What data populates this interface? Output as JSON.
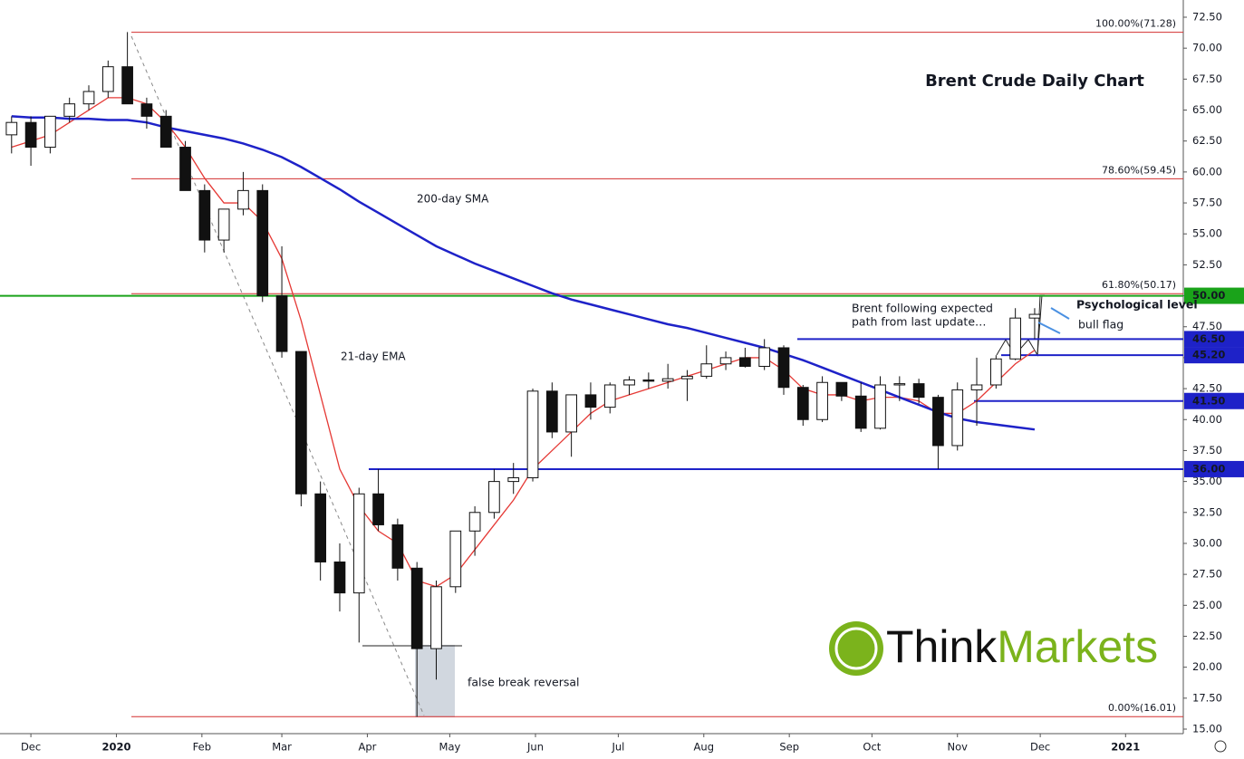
{
  "chart_data": {
    "type": "candlestick",
    "title": "Brent Crude Daily Chart",
    "categories": [
      null,
      null,
      null,
      null,
      null,
      null,
      null,
      null,
      null,
      null,
      null,
      null,
      null,
      null,
      null,
      null,
      null,
      null,
      null,
      null,
      null,
      null,
      null,
      null,
      null,
      null,
      null,
      null,
      null,
      null,
      null,
      null,
      null,
      null,
      null,
      null,
      null,
      null,
      null,
      null,
      null,
      null,
      null,
      null,
      null,
      null,
      null,
      null,
      null,
      null,
      null,
      null,
      null,
      null
    ],
    "open": [
      63,
      64,
      62,
      64.5,
      65.5,
      66.5,
      68.5,
      65.5,
      64.5,
      62,
      58.5,
      54.5,
      57,
      58.5,
      50,
      45.5,
      34,
      28.5,
      26,
      34,
      31.5,
      28,
      21.5,
      26.5,
      31,
      32.5,
      35,
      35.3,
      42.3,
      39,
      42,
      41,
      42.8,
      43.2,
      43.1,
      43.3,
      43.5,
      44.5,
      45,
      44.3,
      45.8,
      42.6,
      40,
      43,
      41.9,
      39.3,
      42.8,
      42.9,
      41.8,
      37.9,
      42.4,
      42.8,
      44.9,
      48.2
    ],
    "high": [
      64.5,
      64.5,
      64.5,
      66,
      67,
      69,
      71.3,
      66,
      65,
      62.5,
      59,
      57,
      60,
      59,
      54,
      45.5,
      35,
      30,
      34.5,
      36,
      32,
      28.5,
      27,
      31,
      33,
      36,
      36.5,
      42.5,
      43,
      42,
      43,
      43,
      43.5,
      43.8,
      44.5,
      44,
      46,
      45.5,
      45.8,
      46.5,
      46,
      42.8,
      43.5,
      43,
      43,
      43.5,
      43.5,
      43.3,
      42,
      43,
      45,
      45.2,
      49,
      49
    ],
    "low": [
      61.5,
      60.5,
      61.5,
      64,
      65,
      66,
      65.5,
      63.5,
      62,
      58.5,
      53.5,
      53.5,
      56.5,
      49.5,
      45,
      33,
      27,
      24.5,
      22,
      31,
      27,
      16,
      19,
      26,
      29,
      32,
      34,
      35,
      38.5,
      37,
      40,
      40.5,
      42,
      42.5,
      42.5,
      41.5,
      43.3,
      44,
      44.2,
      44,
      42,
      39.5,
      39.8,
      41.5,
      39,
      39.2,
      41.5,
      41.3,
      36,
      37.5,
      39.5,
      42.5,
      44.8,
      46.5
    ],
    "close": [
      64,
      62,
      64.5,
      65.5,
      66.5,
      68.5,
      65.5,
      64.5,
      62,
      58.5,
      54.5,
      57,
      58.5,
      50,
      45.5,
      34,
      28.5,
      26,
      34,
      31.5,
      28,
      21.5,
      26.5,
      31,
      32.5,
      35,
      35.3,
      42.3,
      39,
      42,
      41,
      42.8,
      43.2,
      43.1,
      43.3,
      43.5,
      44.5,
      45,
      44.3,
      45.8,
      42.6,
      40,
      43,
      41.9,
      39.3,
      42.8,
      42.9,
      41.8,
      37.9,
      42.4,
      42.8,
      44.9,
      48.2,
      48.5
    ],
    "overlays": [
      {
        "name": "21-day EMA",
        "color": "#e53935",
        "values": [
          62,
          62.5,
          63,
          64,
          65,
          66,
          66,
          65.5,
          64,
          62,
          59.5,
          57.5,
          57.5,
          56,
          53,
          48,
          42,
          36,
          33,
          31,
          30,
          27,
          26.5,
          27.5,
          29.5,
          31.5,
          33.5,
          36,
          37.5,
          39,
          40.5,
          41.5,
          42,
          42.5,
          43,
          43.5,
          44,
          44.5,
          45,
          45,
          44,
          42.5,
          42,
          42,
          41.5,
          41.8,
          41.8,
          41.5,
          40.5,
          40.5,
          41.5,
          43,
          44.5,
          45.6
        ]
      },
      {
        "name": "200-day SMA",
        "color": "#1e22c8",
        "values": [
          64.5,
          64.4,
          64.4,
          64.3,
          64.3,
          64.2,
          64.2,
          64,
          63.6,
          63.3,
          63,
          62.7,
          62.3,
          61.8,
          61.2,
          60.4,
          59.5,
          58.6,
          57.6,
          56.7,
          55.8,
          54.9,
          54,
          53.3,
          52.6,
          52,
          51.4,
          50.8,
          50.2,
          49.7,
          49.3,
          48.9,
          48.5,
          48.1,
          47.7,
          47.4,
          47,
          46.6,
          46.2,
          45.8,
          45.3,
          44.8,
          44.2,
          43.6,
          43,
          42.4,
          41.8,
          41.2,
          40.6,
          40.1,
          39.8,
          39.6,
          39.4,
          39.2
        ]
      }
    ],
    "fib_levels": [
      {
        "label": "100.00%(71.28)",
        "value": 71.28
      },
      {
        "label": "78.60%(59.45)",
        "value": 59.45
      },
      {
        "label": "61.80%(50.17)",
        "value": 50.17
      },
      {
        "label": "0.00%(16.01)",
        "value": 16.01
      }
    ],
    "price_levels": [
      {
        "value": 50,
        "label": "50.00",
        "color": "#1aa31a"
      },
      {
        "value": 46.5,
        "label": "46.50",
        "color": "#1e22c8"
      },
      {
        "value": 45.2,
        "label": "45.20",
        "color": "#1e22c8"
      },
      {
        "value": 41.5,
        "label": "41.50",
        "color": "#1e22c8"
      },
      {
        "value": 36,
        "label": "36.00",
        "color": "#1e22c8"
      }
    ],
    "annotations": {
      "expected_line1": "Brent following expected",
      "expected_line2": "path from last update…",
      "psychological": "Psychological level",
      "bull_flag": "bull flag",
      "false_break": "false break reversal"
    },
    "logo": {
      "think": "Think",
      "markets": "Markets"
    },
    "xlim": [
      -0.6,
      60.7
    ],
    "xticks": [
      {
        "value": 1,
        "label": "Dec"
      },
      {
        "value": 5.43,
        "label": "2020"
      },
      {
        "value": 9.86,
        "label": "Feb"
      },
      {
        "value": 14,
        "label": "Mar"
      },
      {
        "value": 18.43,
        "label": "Apr"
      },
      {
        "value": 22.7,
        "label": "May"
      },
      {
        "value": 27.14,
        "label": "Jun"
      },
      {
        "value": 31.43,
        "label": "Jul"
      },
      {
        "value": 35.86,
        "label": "Aug"
      },
      {
        "value": 40.29,
        "label": "Sep"
      },
      {
        "value": 44.57,
        "label": "Oct"
      },
      {
        "value": 49,
        "label": "Nov"
      },
      {
        "value": 53.29,
        "label": "Dec"
      },
      {
        "value": 57.71,
        "label": "2021"
      }
    ],
    "ylim": [
      15,
      72.5
    ],
    "yticks": [
      {
        "value": 15,
        "label": "15.00"
      },
      {
        "value": 17.5,
        "label": "17.50"
      },
      {
        "value": 20,
        "label": "20.00"
      },
      {
        "value": 22.5,
        "label": "22.50"
      },
      {
        "value": 25,
        "label": "25.00"
      },
      {
        "value": 27.5,
        "label": "27.50"
      },
      {
        "value": 30,
        "label": "30.00"
      },
      {
        "value": 32.5,
        "label": "32.50"
      },
      {
        "value": 35,
        "label": "35.00"
      },
      {
        "value": 37.5,
        "label": "37.50"
      },
      {
        "value": 40,
        "label": "40.00"
      },
      {
        "value": 42.5,
        "label": "42.50"
      },
      {
        "value": 45,
        "label": "45.00"
      },
      {
        "value": 47.5,
        "label": "47.50"
      },
      {
        "value": 50,
        "label": "50.00"
      },
      {
        "value": 52.5,
        "label": "52.50"
      },
      {
        "value": 55,
        "label": "55.00"
      },
      {
        "value": 57.5,
        "label": "57.50"
      },
      {
        "value": 60,
        "label": "60.00"
      },
      {
        "value": 62.5,
        "label": "62.50"
      },
      {
        "value": 65,
        "label": "65.00"
      },
      {
        "value": 67.5,
        "label": "67.50"
      },
      {
        "value": 70,
        "label": "70.00"
      },
      {
        "value": 72.5,
        "label": "72.50"
      }
    ]
  }
}
